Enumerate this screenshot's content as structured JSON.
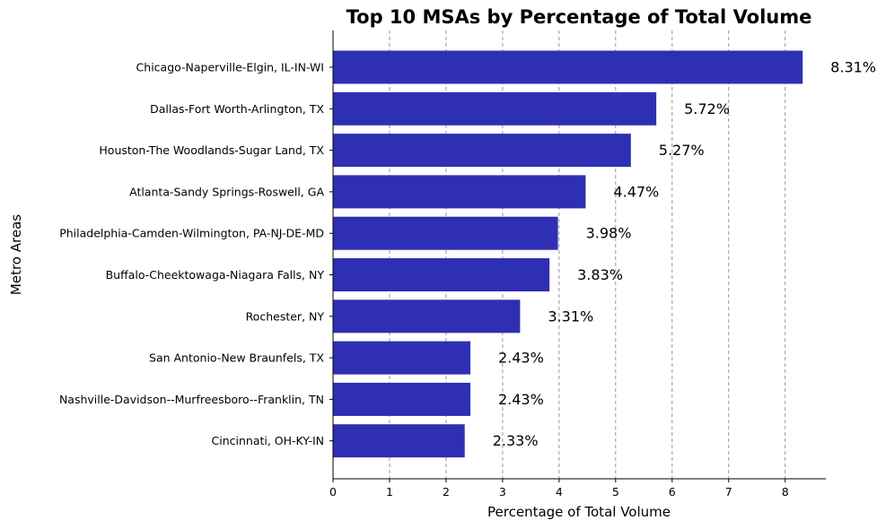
{
  "chart_data": {
    "type": "bar",
    "orientation": "horizontal",
    "title": "Top 10 MSAs by Percentage of Total Volume",
    "xlabel": "Percentage of Total Volume",
    "ylabel": "Metro Areas",
    "xlim": [
      0,
      8.72
    ],
    "xticks": [
      0,
      1,
      2,
      3,
      4,
      5,
      6,
      7,
      8
    ],
    "grid": "x-dashed",
    "bar_color": "#2f2fb4",
    "categories": [
      "Chicago-Naperville-Elgin, IL-IN-WI",
      "Dallas-Fort Worth-Arlington, TX",
      "Houston-The Woodlands-Sugar Land, TX",
      "Atlanta-Sandy Springs-Roswell, GA",
      "Philadelphia-Camden-Wilmington, PA-NJ-DE-MD",
      "Buffalo-Cheektowaga-Niagara Falls, NY",
      "Rochester, NY",
      "San Antonio-New Braunfels, TX",
      "Nashville-Davidson--Murfreesboro--Franklin, TN",
      "Cincinnati, OH-KY-IN"
    ],
    "values": [
      8.31,
      5.72,
      5.27,
      4.47,
      3.98,
      3.83,
      3.31,
      2.43,
      2.43,
      2.33
    ],
    "labels": [
      "8.31%",
      "5.72%",
      "5.27%",
      "4.47%",
      "3.98%",
      "3.83%",
      "3.31%",
      "2.43%",
      "2.43%",
      "2.33%"
    ]
  }
}
